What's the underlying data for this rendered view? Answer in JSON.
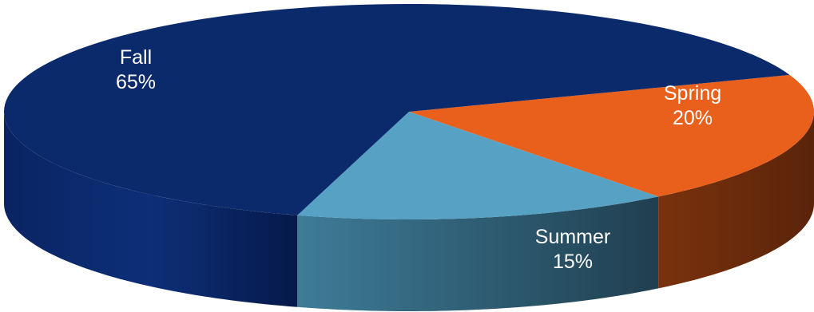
{
  "chart_data": {
    "type": "pie",
    "style": "3d",
    "slices": [
      {
        "name": "Fall",
        "value": 65,
        "label": "65%",
        "color": "#0b2a6b",
        "side_color": "#08205a"
      },
      {
        "name": "Spring",
        "value": 20,
        "label": "20%",
        "color": "#e8601c",
        "side_color": "#6a2a0c"
      },
      {
        "name": "Summer",
        "value": 15,
        "label": "15%",
        "color": "#56a1c4",
        "side_color": "#2f5d73"
      }
    ]
  }
}
